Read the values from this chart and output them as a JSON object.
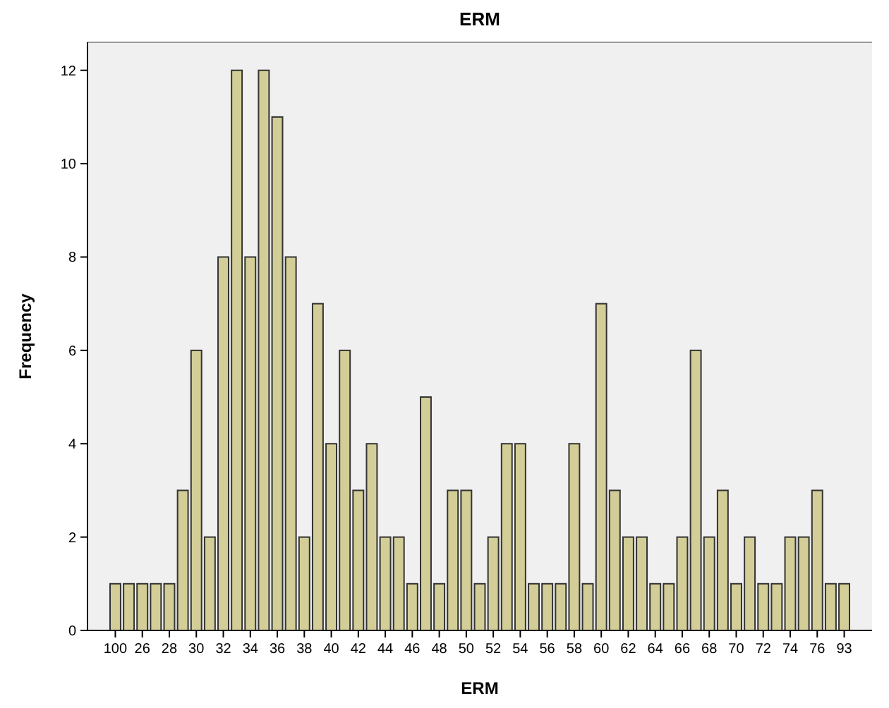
{
  "chart_data": {
    "type": "bar",
    "title": "ERM",
    "xlabel": "ERM",
    "ylabel": "Frequency",
    "categories": [
      "100",
      null,
      "26",
      null,
      "28",
      null,
      "30",
      null,
      "32",
      null,
      "34",
      null,
      "36",
      null,
      "38",
      null,
      "40",
      null,
      "42",
      null,
      "44",
      null,
      "46",
      null,
      "48",
      null,
      "50",
      null,
      "52",
      null,
      "54",
      null,
      "56",
      null,
      "58",
      null,
      "60",
      null,
      "62",
      null,
      "64",
      null,
      "66",
      null,
      "68",
      null,
      "70",
      null,
      "72",
      null,
      "74",
      null,
      "76",
      null,
      "93"
    ],
    "values": [
      1,
      1,
      1,
      1,
      1,
      3,
      6,
      2,
      8,
      12,
      8,
      12,
      11,
      8,
      2,
      7,
      4,
      6,
      3,
      4,
      2,
      2,
      1,
      5,
      1,
      3,
      3,
      1,
      2,
      4,
      4,
      1,
      1,
      1,
      4,
      1,
      7,
      3,
      2,
      2,
      1,
      1,
      2,
      6,
      2,
      3,
      1,
      2,
      1,
      1,
      2,
      2,
      3,
      1,
      1
    ],
    "color": "#d3ce97",
    "ylim": [
      0,
      12.6
    ],
    "yticks": [
      0,
      2,
      4,
      6,
      8,
      10,
      12
    ],
    "grid": false
  }
}
